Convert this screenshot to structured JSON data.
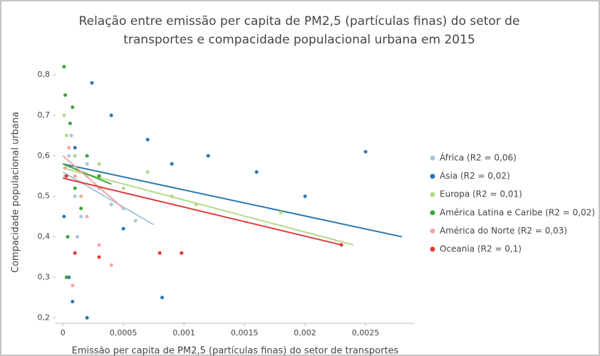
{
  "chart_data": {
    "type": "scatter",
    "title": [
      "Relação entre emissão per capita de PM2,5 (partículas finas) do setor de",
      "transportes e compacidade populacional urbana em 2015"
    ],
    "x_label": "Emissão per capita de PM2,5 (partículas finas) do setor de transportes",
    "y_label": "Compacidade populacional urbana",
    "xlim": [
      -6e-05,
      0.0029
    ],
    "ylim": [
      0.19,
      0.83
    ],
    "xticks": [
      0,
      {
        "value": 0.0005,
        "label": "0,0005"
      },
      {
        "value": 0.001,
        "label": "0,001"
      },
      {
        "value": 0.0015,
        "label": "0,0015"
      },
      {
        "value": 0.002,
        "label": "0,002"
      },
      {
        "value": 0.0025,
        "label": "0,0025"
      }
    ],
    "yticks": [
      {
        "value": 0.2,
        "label": "0,2"
      },
      {
        "value": 0.3,
        "label": "0,3"
      },
      {
        "value": 0.4,
        "label": "0,4"
      },
      {
        "value": 0.5,
        "label": "0,5"
      },
      {
        "value": 0.6,
        "label": "0,6"
      },
      {
        "value": 0.7,
        "label": "0,7"
      },
      {
        "value": 0.8,
        "label": "0,8"
      }
    ],
    "legend": "right",
    "series": [
      {
        "name": "África (R2 = 0,06)",
        "color": "#a9c6d6",
        "x": [
          2e-05,
          5e-05,
          0.0001,
          0.00015,
          0.0002,
          0.0003,
          0.0004,
          0.0005,
          0.0006,
          7e-05,
          0.00012
        ],
        "y": [
          0.55,
          0.6,
          0.5,
          0.45,
          0.58,
          0.52,
          0.48,
          0.47,
          0.44,
          0.65,
          0.4
        ],
        "trend": {
          "x": [
            0,
            0.00075
          ],
          "y": [
            0.56,
            0.43
          ]
        }
      },
      {
        "name": "Ásia (R2 = 0,02)",
        "color": "#2b78b0",
        "x": [
          1e-05,
          5e-05,
          0.0001,
          0.0002,
          0.0003,
          0.0004,
          0.0005,
          0.0007,
          0.0009,
          0.0012,
          0.0016,
          0.002,
          0.0025,
          8e-05,
          0.00024,
          0.00082
        ],
        "y": [
          0.45,
          0.3,
          0.62,
          0.2,
          0.55,
          0.7,
          0.42,
          0.64,
          0.58,
          0.6,
          0.56,
          0.5,
          0.61,
          0.24,
          0.78,
          0.25
        ],
        "trend": {
          "x": [
            0,
            0.0028
          ],
          "y": [
            0.58,
            0.4
          ]
        }
      },
      {
        "name": "Europa (R2 = 0,01)",
        "color": "#b5d88a",
        "x": [
          1e-05,
          3e-05,
          0.0001,
          0.0002,
          0.0003,
          0.0005,
          0.0007,
          0.0009,
          0.0011,
          0.0018
        ],
        "y": [
          0.7,
          0.65,
          0.6,
          0.55,
          0.58,
          0.52,
          0.56,
          0.5,
          0.48,
          0.46
        ],
        "trend": {
          "x": [
            0,
            0.0024
          ],
          "y": [
            0.57,
            0.38
          ]
        }
      },
      {
        "name": "América Latina e Caribe (R2 = 0,02)",
        "color": "#3aa53a",
        "x": [
          1e-05,
          2e-05,
          4e-05,
          6e-05,
          0.0001,
          0.00015,
          0.0002,
          0.0003,
          3e-05,
          8e-05
        ],
        "y": [
          0.82,
          0.75,
          0.4,
          0.68,
          0.52,
          0.47,
          0.6,
          0.55,
          0.3,
          0.72
        ],
        "trend": {
          "x": [
            0,
            0.0004
          ],
          "y": [
            0.58,
            0.53
          ]
        }
      },
      {
        "name": "América do Norte (R2 = 0,03)",
        "color": "#f2a6a6",
        "x": [
          2e-05,
          5e-05,
          0.0001,
          0.00015,
          0.0002,
          0.0003,
          0.0004,
          8e-05
        ],
        "y": [
          0.57,
          0.62,
          0.55,
          0.5,
          0.45,
          0.38,
          0.33,
          0.28
        ],
        "trend": {
          "x": [
            0,
            0.0005
          ],
          "y": [
            0.6,
            0.47
          ]
        }
      },
      {
        "name": "Oceania (R2 = 0,1)",
        "color": "#e03a3a",
        "x": [
          3e-05,
          0.0001,
          0.0003,
          0.0008,
          0.00098,
          0.0023
        ],
        "y": [
          0.55,
          0.36,
          0.35,
          0.36,
          0.36,
          0.38
        ],
        "trend": {
          "x": [
            0,
            0.0023
          ],
          "y": [
            0.545,
            0.38
          ]
        }
      }
    ]
  }
}
